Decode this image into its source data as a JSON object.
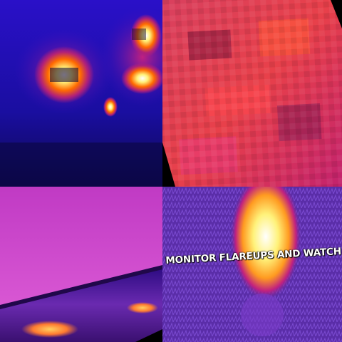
{
  "panels": {
    "top_left": {
      "description_icon": "thermal-fire-night-icon"
    },
    "top_right": {
      "description_icon": "thermal-pixelated-icon"
    },
    "bottom_left": {
      "description_icon": "thermal-shoreline-icon"
    },
    "bottom_right": {
      "description_icon": "thermal-flame-icon",
      "caption": "MONITOR FLAREUPS AND WATCH FOR FIRE TRAVE"
    }
  },
  "colors": {
    "deep_blue": "#1c10b8",
    "magenta": "#c23cc8",
    "hot_orange": "#ff6a00",
    "hot_yellow": "#fff27a",
    "purple": "#5a2da8"
  }
}
